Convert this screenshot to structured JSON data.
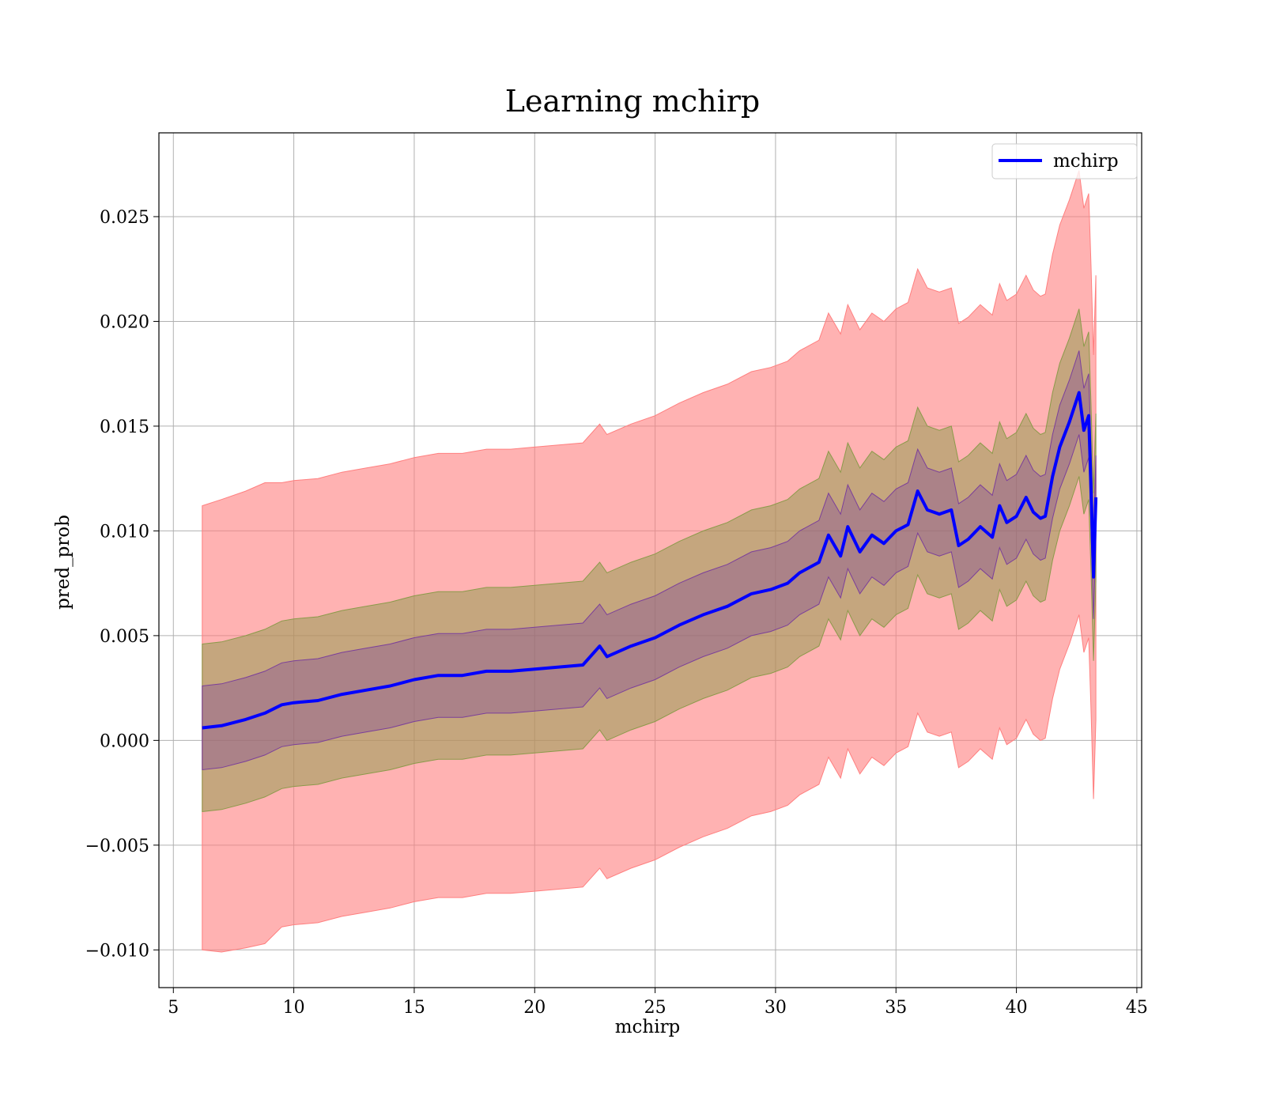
{
  "chart_data": {
    "type": "area",
    "title": "Learning mchirp",
    "xlabel": "mchirp",
    "ylabel": "pred_prob",
    "xlim": [
      4.4,
      45.2
    ],
    "ylim": [
      -0.0118,
      0.029
    ],
    "xticks": [
      5,
      10,
      15,
      20,
      25,
      30,
      35,
      40,
      45
    ],
    "xtick_labels": [
      "5",
      "10",
      "15",
      "20",
      "25",
      "30",
      "35",
      "40",
      "45"
    ],
    "yticks": [
      -0.01,
      -0.005,
      0.0,
      0.005,
      0.01,
      0.015,
      0.02,
      0.025
    ],
    "ytick_labels": [
      "−0.010",
      "−0.005",
      "0.000",
      "0.005",
      "0.010",
      "0.015",
      "0.020",
      "0.025"
    ],
    "grid": true,
    "legend_position": "top-right",
    "legend": [
      "mchirp"
    ],
    "colors": {
      "line": "#0000ff",
      "band_outer": "#ff7f7f",
      "band_mid": "#8b9a4a",
      "band_inner": "#7b3f9a"
    },
    "series": [
      {
        "name": "mchirp",
        "x": [
          6.2,
          7.0,
          8.0,
          8.8,
          9.5,
          10.0,
          11.0,
          12.0,
          13.0,
          14.0,
          15.0,
          16.0,
          17.0,
          18.0,
          19.0,
          20.0,
          21.0,
          22.0,
          22.7,
          23.0,
          24.0,
          25.0,
          26.0,
          27.0,
          28.0,
          29.0,
          29.8,
          30.5,
          31.0,
          31.8,
          32.2,
          32.7,
          33.0,
          33.5,
          34.0,
          34.5,
          35.0,
          35.5,
          35.9,
          36.3,
          36.8,
          37.3,
          37.6,
          38.0,
          38.5,
          39.0,
          39.3,
          39.6,
          40.0,
          40.4,
          40.7,
          41.0,
          41.2,
          41.5,
          41.8,
          42.2,
          42.6,
          42.8,
          43.0,
          43.1,
          43.2,
          43.3
        ],
        "values": [
          0.0006,
          0.0007,
          0.001,
          0.0013,
          0.0017,
          0.0018,
          0.0019,
          0.0022,
          0.0024,
          0.0026,
          0.0029,
          0.0031,
          0.0031,
          0.0033,
          0.0033,
          0.0034,
          0.0035,
          0.0036,
          0.0045,
          0.004,
          0.0045,
          0.0049,
          0.0055,
          0.006,
          0.0064,
          0.007,
          0.0072,
          0.0075,
          0.008,
          0.0085,
          0.0098,
          0.0088,
          0.0102,
          0.009,
          0.0098,
          0.0094,
          0.01,
          0.0103,
          0.0119,
          0.011,
          0.0108,
          0.011,
          0.0093,
          0.0096,
          0.0102,
          0.0097,
          0.0112,
          0.0104,
          0.0107,
          0.0116,
          0.0109,
          0.0106,
          0.0107,
          0.0126,
          0.014,
          0.0152,
          0.0166,
          0.0148,
          0.0155,
          0.012,
          0.0078,
          0.0116
        ],
        "band_inner_half_width": [
          0.002,
          0.002,
          0.002,
          0.002,
          0.002,
          0.002,
          0.002,
          0.002,
          0.002,
          0.002,
          0.002,
          0.002,
          0.002,
          0.002,
          0.002,
          0.002,
          0.002,
          0.002,
          0.002,
          0.002,
          0.002,
          0.002,
          0.002,
          0.002,
          0.002,
          0.002,
          0.002,
          0.002,
          0.002,
          0.002,
          0.002,
          0.002,
          0.002,
          0.002,
          0.002,
          0.002,
          0.002,
          0.002,
          0.002,
          0.002,
          0.002,
          0.002,
          0.002,
          0.002,
          0.002,
          0.002,
          0.002,
          0.002,
          0.002,
          0.002,
          0.002,
          0.002,
          0.002,
          0.002,
          0.002,
          0.002,
          0.002,
          0.002,
          0.002,
          0.002,
          0.002,
          0.002
        ],
        "band_mid_half_width": [
          0.004,
          0.004,
          0.004,
          0.004,
          0.004,
          0.004,
          0.004,
          0.004,
          0.004,
          0.004,
          0.004,
          0.004,
          0.004,
          0.004,
          0.004,
          0.004,
          0.004,
          0.004,
          0.004,
          0.004,
          0.004,
          0.004,
          0.004,
          0.004,
          0.004,
          0.004,
          0.004,
          0.004,
          0.004,
          0.004,
          0.004,
          0.004,
          0.004,
          0.004,
          0.004,
          0.004,
          0.004,
          0.004,
          0.004,
          0.004,
          0.004,
          0.004,
          0.004,
          0.004,
          0.004,
          0.004,
          0.004,
          0.004,
          0.004,
          0.004,
          0.004,
          0.004,
          0.004,
          0.004,
          0.004,
          0.004,
          0.004,
          0.004,
          0.004,
          0.004,
          0.004,
          0.004
        ],
        "band_outer_half_width": [
          0.0106,
          0.0108,
          0.0109,
          0.011,
          0.0106,
          0.0106,
          0.0106,
          0.0106,
          0.0106,
          0.0106,
          0.0106,
          0.0106,
          0.0106,
          0.0106,
          0.0106,
          0.0106,
          0.0106,
          0.0106,
          0.0106,
          0.0106,
          0.0106,
          0.0106,
          0.0106,
          0.0106,
          0.0106,
          0.0106,
          0.0106,
          0.0106,
          0.0106,
          0.0106,
          0.0106,
          0.0106,
          0.0106,
          0.0106,
          0.0106,
          0.0106,
          0.0106,
          0.0106,
          0.0106,
          0.0106,
          0.0106,
          0.0106,
          0.0106,
          0.0106,
          0.0106,
          0.0106,
          0.0106,
          0.0106,
          0.0106,
          0.0106,
          0.0106,
          0.0106,
          0.0106,
          0.0106,
          0.0106,
          0.0106,
          0.0106,
          0.0106,
          0.0106,
          0.0106,
          0.0106,
          0.0106
        ]
      }
    ]
  }
}
